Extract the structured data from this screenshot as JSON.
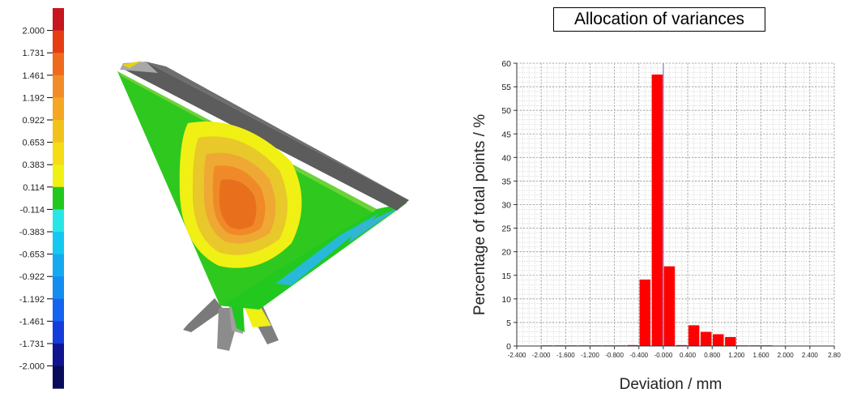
{
  "color_scale": {
    "labels": [
      "2.000",
      "1.731",
      "1.461",
      "1.192",
      "0.922",
      "0.653",
      "0.383",
      "0.114",
      "-0.114",
      "-0.383",
      "-0.653",
      "-0.922",
      "-1.192",
      "-1.461",
      "-1.731",
      "-2.000"
    ],
    "colors": [
      "#c8141e",
      "#e63c14",
      "#f06a1e",
      "#f28c28",
      "#f5a623",
      "#f2c21a",
      "#f5dc14",
      "#f0f014",
      "#22c81e",
      "#28e6e6",
      "#14c8f0",
      "#14aaf0",
      "#148cf0",
      "#1464f0",
      "#143cdc",
      "#101490",
      "#0a0a5a"
    ]
  },
  "chart_data": {
    "type": "bar",
    "title": "Allocation of variances",
    "xlabel": "Deviation / mm",
    "ylabel": "Percentage of total points / %",
    "x_ticks": [
      "-2.400",
      "-2.000",
      "-1.600",
      "-1.200",
      "-0.800",
      "-0.400",
      "-0.000",
      "0.400",
      "0.800",
      "1.200",
      "1.600",
      "2.000",
      "2.400",
      "2.80"
    ],
    "y_ticks": [
      "0",
      "5",
      "10",
      "15",
      "20",
      "25",
      "30",
      "35",
      "40",
      "45",
      "50",
      "55",
      "60"
    ],
    "ylim": [
      0,
      60
    ],
    "xlim": [
      -2.4,
      2.8
    ],
    "bin_width": 0.2,
    "bins": [
      {
        "center": -1.9,
        "value": 0.1
      },
      {
        "center": -1.7,
        "value": 0.1
      },
      {
        "center": -1.5,
        "value": 0.1
      },
      {
        "center": -1.3,
        "value": 0.1
      },
      {
        "center": -1.1,
        "value": 0.1
      },
      {
        "center": -0.9,
        "value": 0.1
      },
      {
        "center": -0.7,
        "value": 0.1
      },
      {
        "center": -0.5,
        "value": 0.2
      },
      {
        "center": -0.3,
        "value": 14.1
      },
      {
        "center": -0.1,
        "value": 57.6
      },
      {
        "center": 0.1,
        "value": 16.9
      },
      {
        "center": 0.3,
        "value": 0.2
      },
      {
        "center": 0.5,
        "value": 4.4
      },
      {
        "center": 0.7,
        "value": 3.0
      },
      {
        "center": 0.9,
        "value": 2.5
      },
      {
        "center": 1.1,
        "value": 1.9
      },
      {
        "center": 1.3,
        "value": 0.1
      },
      {
        "center": 1.5,
        "value": 0.1
      },
      {
        "center": 1.7,
        "value": 0.1
      }
    ],
    "bar_color": "#ff0000",
    "grid": true
  }
}
